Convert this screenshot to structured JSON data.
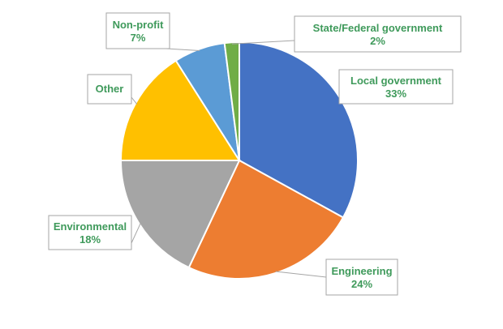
{
  "chart_data": {
    "type": "pie",
    "title": "",
    "start_angle_deg": 0,
    "direction": "clockwise",
    "slices": [
      {
        "label": "Local government",
        "value": 33,
        "value_label": "33%",
        "color": "#4472c4"
      },
      {
        "label": "Engineering",
        "value": 24,
        "value_label": "24%",
        "color": "#ed7d31"
      },
      {
        "label": "Environmental",
        "value": 18,
        "value_label": "18%",
        "color": "#a5a5a5"
      },
      {
        "label": "Other",
        "value": 16,
        "value_label": "",
        "color": "#ffc000"
      },
      {
        "label": "Non-profit",
        "value": 7,
        "value_label": "7%",
        "color": "#5b9bd5"
      },
      {
        "label": "State/Federal government",
        "value": 2,
        "value_label": "2%",
        "color": "#70ad47"
      }
    ],
    "legend": "none",
    "data_label_color": "#3f9a5b"
  }
}
